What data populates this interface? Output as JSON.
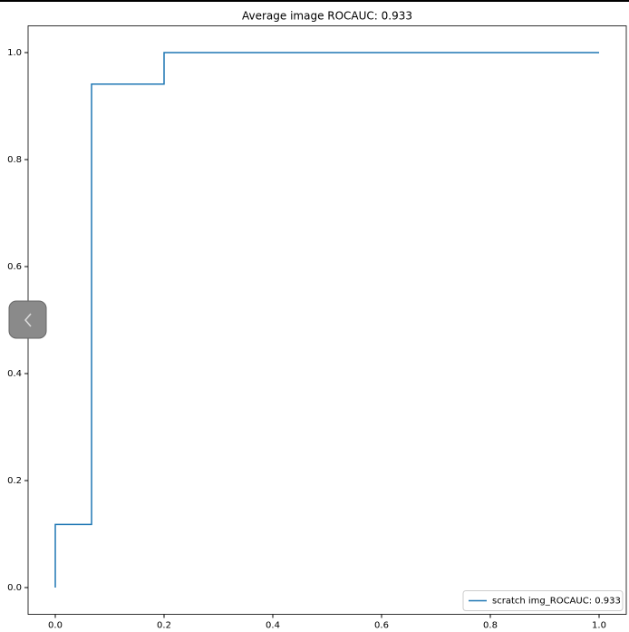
{
  "chart_data": {
    "type": "line",
    "title": "Average image ROCAUC: 0.933",
    "series": [
      {
        "name": "scratch img_ROCAUC: 0.933",
        "color": "#1f77b4",
        "x": [
          0,
          0,
          0.0667,
          0.0667,
          0.2,
          0.2,
          1.0
        ],
        "values": [
          0,
          0.118,
          0.118,
          0.941,
          0.941,
          1.0,
          1.0
        ]
      }
    ],
    "xlim": [
      -0.05,
      1.05
    ],
    "ylim": [
      -0.05,
      1.05
    ],
    "xticks": [
      {
        "value": 0,
        "label": "0.0"
      },
      0.2,
      0.4,
      0.6,
      0.8,
      {
        "value": 1,
        "label": "1.0"
      }
    ],
    "yticks": [
      {
        "value": 0,
        "label": "0.0"
      },
      0.2,
      0.4,
      0.6,
      0.8,
      {
        "value": 1,
        "label": "1.0"
      }
    ],
    "grid": false,
    "legend": "lower right"
  }
}
